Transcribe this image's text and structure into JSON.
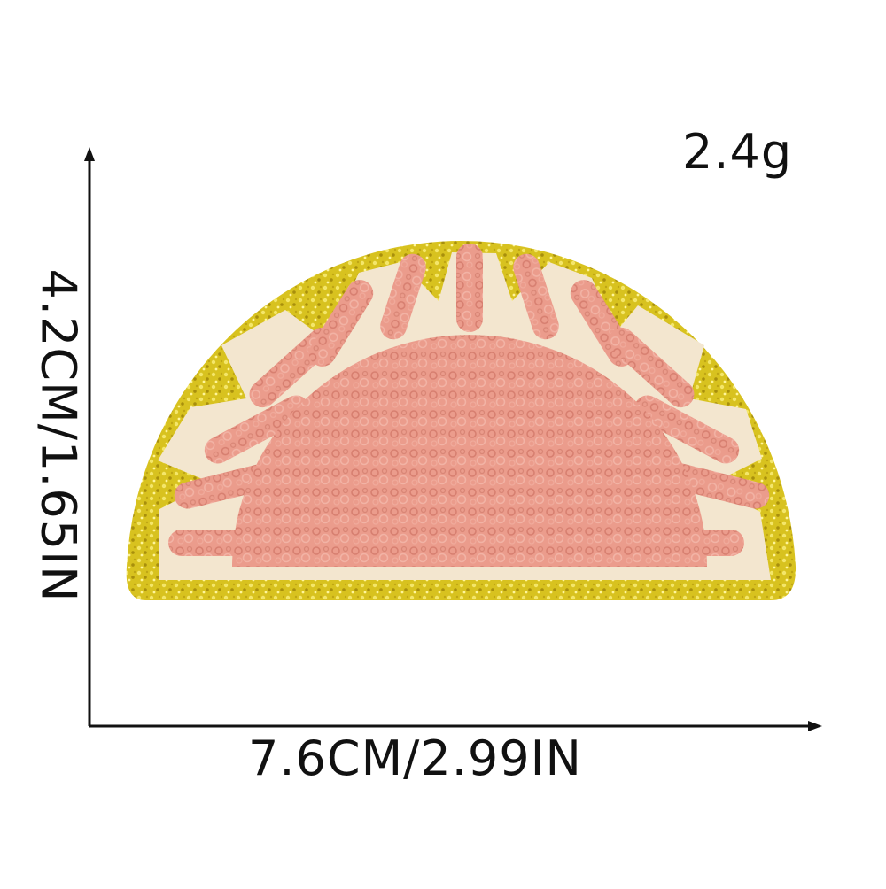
{
  "product": {
    "name": "pink chenille half-sun patch",
    "weight": "2.4g",
    "width_dimension": "7.6CM/2.99IN",
    "height_dimension": "4.2CM/1.65IN",
    "colors": {
      "glitter_border": "#d8c21f",
      "felt_base": "#f3e6cf",
      "chenille": "#eb9c8c",
      "axis_lines": "#111111"
    }
  }
}
